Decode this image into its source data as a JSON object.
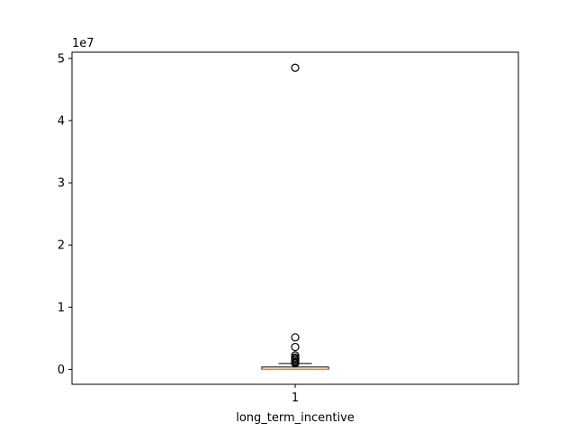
{
  "chart_data": {
    "type": "box",
    "xlabel": "long_term_incentive",
    "x_tick_labels": [
      "1"
    ],
    "y_tick_labels": [
      "0",
      "1",
      "2",
      "3",
      "4",
      "5"
    ],
    "y_offset_label": "1e7",
    "ylim": [
      -2400000,
      51000000
    ],
    "y_ticks": [
      0,
      10000000,
      20000000,
      30000000,
      40000000,
      50000000
    ],
    "grid": false,
    "box": {
      "position": 1,
      "q1": 0,
      "median": 0,
      "q3": 375000,
      "whisker_low": 0,
      "whisker_high": 938000
    },
    "outliers": [
      48500000,
      5150000,
      3600000,
      2250000,
      1900000,
      1700000,
      1500000,
      1250000,
      1100000,
      1000000
    ],
    "colors": {
      "median_line": "#ff7f0e",
      "box_line": "#000000",
      "flier_edge": "#000000"
    }
  }
}
